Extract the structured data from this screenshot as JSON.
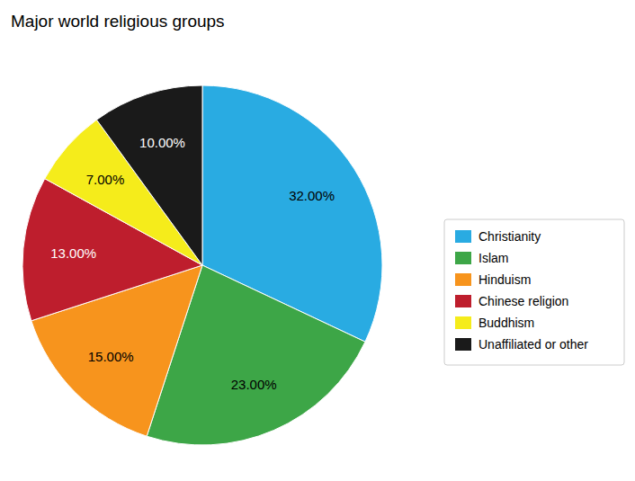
{
  "chart_data": {
    "type": "pie",
    "title": "Major world religious groups",
    "categories": [
      "Christianity",
      "Islam",
      "Hinduism",
      "Chinese religion",
      "Buddhism",
      "Unaffiliated or other"
    ],
    "values": [
      32,
      23,
      15,
      13,
      7,
      10
    ],
    "value_labels": [
      "32.00%",
      "23.00%",
      "15.00%",
      "13.00%",
      "7.00%",
      "10.00%"
    ],
    "colors": [
      "#29ABE2",
      "#3DA647",
      "#F7941D",
      "#BE1E2D",
      "#F5EC1B",
      "#1A1A1A"
    ],
    "data_labels": true,
    "legend": "right"
  }
}
